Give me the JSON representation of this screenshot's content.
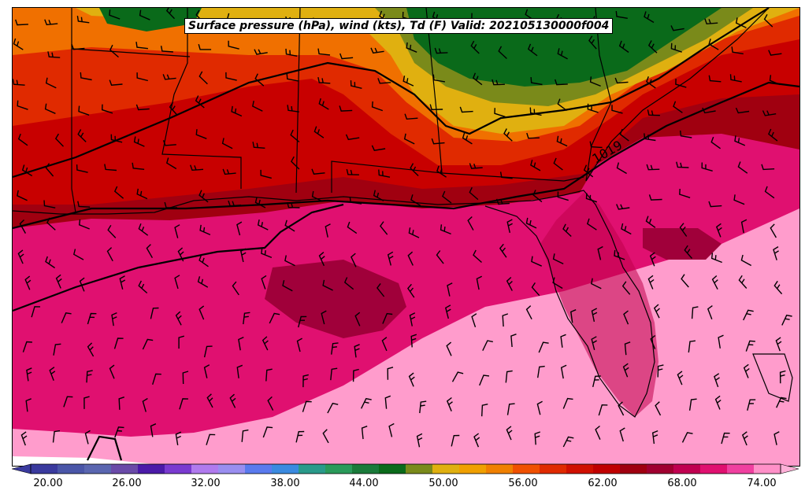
{
  "title": "Surface pressure (hPa), wind (kts), Td (F) Valid: 202105130000f004",
  "isobar_label": "1019",
  "colorbar": {
    "tick_labels": [
      "20.00",
      "26.00",
      "32.00",
      "38.00",
      "44.00",
      "50.00",
      "56.00",
      "62.00",
      "68.00",
      "74.00"
    ],
    "colors": [
      "#3a3a9e",
      "#4a56a8",
      "#5a66b0",
      "#6a4aa8",
      "#4b1aa8",
      "#7a3ad0",
      "#b07aee",
      "#9a8ef0",
      "#5a7aee",
      "#3a8ae0",
      "#2a9a8a",
      "#2a9a5a",
      "#1a7a3a",
      "#0a6a1a",
      "#7a8a1a",
      "#e0b010",
      "#f0a000",
      "#f08000",
      "#f05000",
      "#e02a00",
      "#d01000",
      "#c00000",
      "#a00010",
      "#a00030",
      "#c00050",
      "#e01070",
      "#f040a0",
      "#ff90c8"
    ]
  },
  "colors": {
    "deep_magenta": "#a0003a",
    "magenta": "#e01070",
    "light_pink": "#ff9ccc",
    "red": "#c80000",
    "dark_red": "#a00010",
    "orange_red": "#e02a00",
    "orange": "#f07000",
    "gold": "#e0b010",
    "olive": "#7a8a1a",
    "green": "#0a6a1a"
  }
}
